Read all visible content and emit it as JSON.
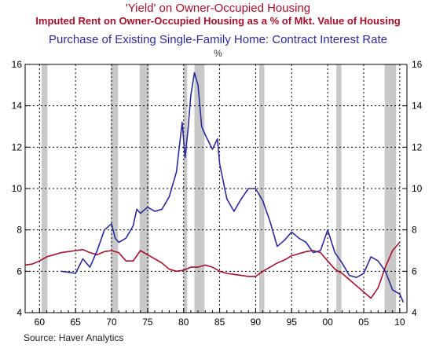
{
  "titles": {
    "line1": "'Yield' on Owner-Occupied Housing",
    "line2": "Imputed Rent on Owner-Occupied Housing as a % of Mkt. Value of Housing",
    "line3": "Purchase of Existing Single-Family Home: Contract Interest Rate",
    "unit": "%"
  },
  "source": "Source: Haver Analytics",
  "colors": {
    "yield": "#a5102a",
    "rate": "#2b2b9b",
    "recession": "#c8c8c8",
    "grid": "#000000"
  },
  "chart_data": {
    "type": "line",
    "title": "'Yield' on Owner-Occupied Housing",
    "xlim": [
      1958,
      2011
    ],
    "ylim": [
      4,
      16
    ],
    "grid": true,
    "x_ticks": [
      1960,
      1965,
      1970,
      1975,
      1980,
      1985,
      1990,
      1995,
      2000,
      2005,
      2010
    ],
    "x_tick_labels": [
      "60",
      "65",
      "70",
      "75",
      "80",
      "85",
      "90",
      "95",
      "00",
      "05",
      "10"
    ],
    "y_ticks": [
      4,
      6,
      8,
      10,
      12,
      14,
      16
    ],
    "y_tick_labels": [
      "4",
      "6",
      "8",
      "10",
      "12",
      "14",
      "16"
    ],
    "recessions": [
      [
        1960.3,
        1961.1
      ],
      [
        1969.9,
        1970.9
      ],
      [
        1973.9,
        1975.2
      ],
      [
        1980.0,
        1980.5
      ],
      [
        1981.5,
        1982.9
      ],
      [
        1990.5,
        1991.2
      ],
      [
        2001.2,
        2001.9
      ],
      [
        2007.9,
        2009.5
      ]
    ],
    "series": [
      {
        "name": "Imputed Rent on Owner-Occupied Housing as a % of Mkt. Value of Housing",
        "x": [
          1958.0,
          1959.0,
          1960.0,
          1961.0,
          1962.0,
          1963.0,
          1964.0,
          1965.0,
          1966.0,
          1967.0,
          1968.0,
          1969.0,
          1970.0,
          1971.0,
          1972.0,
          1973.0,
          1974.0,
          1975.0,
          1976.0,
          1977.0,
          1978.0,
          1979.0,
          1980.0,
          1981.0,
          1982.0,
          1983.0,
          1984.0,
          1985.0,
          1986.0,
          1987.0,
          1988.0,
          1989.0,
          1990.0,
          1991.0,
          1992.0,
          1993.0,
          1994.0,
          1995.0,
          1996.0,
          1997.0,
          1998.0,
          1999.0,
          2000.0,
          2001.0,
          2002.0,
          2003.0,
          2004.0,
          2005.0,
          2006.0,
          2007.0,
          2008.0,
          2009.0,
          2010.0
        ],
        "values": [
          6.3,
          6.35,
          6.5,
          6.7,
          6.8,
          6.9,
          6.95,
          7.0,
          7.05,
          6.9,
          6.8,
          6.95,
          7.0,
          6.9,
          6.5,
          6.5,
          7.0,
          6.8,
          6.6,
          6.4,
          6.1,
          6.0,
          6.05,
          6.2,
          6.2,
          6.3,
          6.2,
          6.0,
          5.9,
          5.85,
          5.8,
          5.75,
          5.75,
          6.0,
          6.2,
          6.4,
          6.55,
          6.75,
          6.85,
          6.95,
          7.0,
          6.9,
          6.5,
          6.1,
          5.9,
          5.6,
          5.3,
          5.0,
          4.7,
          5.2,
          6.2,
          7.0,
          7.4
        ]
      },
      {
        "name": "Purchase of Existing Single-Family Home: Contract Interest Rate",
        "x": [
          1963.0,
          1964.0,
          1965.0,
          1966.0,
          1967.0,
          1968.0,
          1969.0,
          1970.0,
          1970.5,
          1971.0,
          1972.0,
          1973.0,
          1973.5,
          1974.0,
          1975.0,
          1976.0,
          1977.0,
          1978.0,
          1979.0,
          1979.8,
          1980.2,
          1980.6,
          1981.0,
          1981.5,
          1982.0,
          1982.5,
          1983.0,
          1984.0,
          1984.7,
          1985.0,
          1986.0,
          1987.0,
          1988.0,
          1989.0,
          1990.0,
          1991.0,
          1992.0,
          1993.0,
          1994.0,
          1995.0,
          1996.0,
          1997.0,
          1998.0,
          1999.0,
          2000.0,
          2001.0,
          2002.0,
          2003.0,
          2004.0,
          2005.0,
          2006.0,
          2007.0,
          2008.0,
          2009.0,
          2010.0,
          2010.5
        ],
        "values": [
          6.0,
          5.95,
          5.9,
          6.6,
          6.2,
          7.0,
          8.0,
          8.3,
          7.6,
          7.4,
          7.6,
          8.2,
          9.0,
          8.8,
          9.1,
          8.9,
          9.0,
          9.6,
          10.8,
          13.2,
          11.5,
          12.8,
          14.5,
          15.6,
          15.0,
          13.0,
          12.6,
          11.9,
          12.4,
          11.2,
          9.5,
          8.9,
          9.5,
          10.0,
          10.0,
          9.4,
          8.4,
          7.2,
          7.5,
          7.9,
          7.6,
          7.4,
          6.9,
          7.0,
          8.0,
          6.9,
          6.4,
          5.8,
          5.7,
          5.9,
          6.7,
          6.5,
          6.0,
          5.1,
          4.9,
          4.5
        ]
      }
    ]
  }
}
